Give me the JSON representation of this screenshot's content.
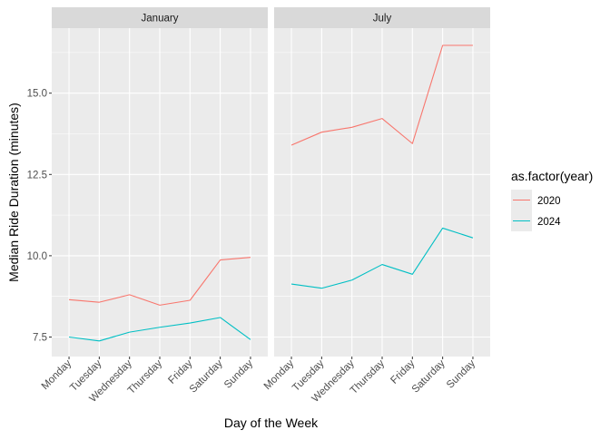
{
  "chart_data": {
    "type": "line",
    "xlabel": "Day of the Week",
    "ylabel": "Median Ride Duration (minutes)",
    "ylim": [
      6.9,
      17.0
    ],
    "yticks": [
      7.5,
      10.0,
      12.5,
      15.0
    ],
    "ytick_labels": [
      "7.5",
      "10.0",
      "12.5",
      "15.0"
    ],
    "categories": [
      "Monday",
      "Tuesday",
      "Wednesday",
      "Thursday",
      "Friday",
      "Saturday",
      "Sunday"
    ],
    "grid": true,
    "legend": {
      "title": "as.factor(year)",
      "placement": "right",
      "entries": [
        {
          "label": "2020",
          "color": "#F8766D"
        },
        {
          "label": "2024",
          "color": "#00BFC4"
        }
      ]
    },
    "facets": [
      {
        "label": "January",
        "series": [
          {
            "name": "2020",
            "color": "#F8766D",
            "values": [
              8.65,
              8.57,
              8.8,
              8.48,
              8.63,
              9.87,
              9.95
            ]
          },
          {
            "name": "2024",
            "color": "#00BFC4",
            "values": [
              7.5,
              7.38,
              7.65,
              7.8,
              7.93,
              8.1,
              7.42
            ]
          }
        ]
      },
      {
        "label": "July",
        "series": [
          {
            "name": "2020",
            "color": "#F8766D",
            "values": [
              13.4,
              13.8,
              13.95,
              14.22,
              13.45,
              16.47,
              16.47
            ]
          },
          {
            "name": "2024",
            "color": "#00BFC4",
            "values": [
              9.13,
              9.0,
              9.25,
              9.73,
              9.43,
              10.85,
              10.55
            ]
          }
        ]
      }
    ]
  }
}
